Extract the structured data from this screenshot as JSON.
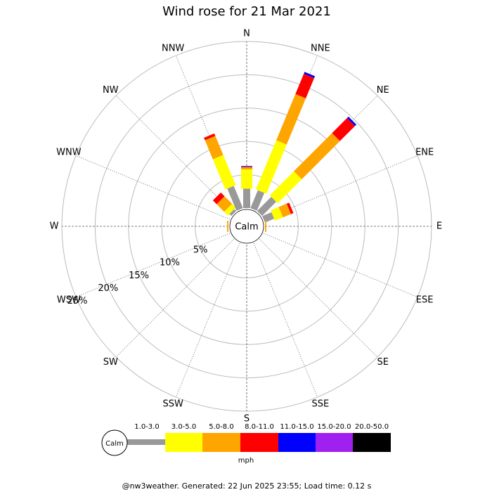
{
  "chart_data": {
    "type": "windrose",
    "title": "Wind rose for 21 Mar 2021",
    "categories": [
      "N",
      "NNE",
      "NE",
      "ENE",
      "E",
      "ESE",
      "SE",
      "SSE",
      "S",
      "SSW",
      "SW",
      "WSW",
      "W",
      "WNW",
      "NW",
      "NNW"
    ],
    "series": [
      {
        "name": "1.0-3.0",
        "color": "#999999",
        "values": [
          2.9,
          2.9,
          3.0,
          1.5,
          0,
          0,
          0,
          0,
          0,
          0,
          0,
          0,
          0,
          0,
          0.4,
          3.6
        ]
      },
      {
        "name": "3.0-5.0",
        "color": "#ffff00",
        "values": [
          2.9,
          8.0,
          5.1,
          1.3,
          0,
          0,
          0,
          0,
          0,
          0,
          0,
          0,
          0,
          0,
          0.8,
          4.9
        ]
      },
      {
        "name": "5.0-8.0",
        "color": "#ffa500",
        "values": [
          0.3,
          7.5,
          8.1,
          1.3,
          0.2,
          0,
          0,
          0,
          0,
          0,
          0,
          0,
          0.2,
          0,
          1.6,
          3.1
        ]
      },
      {
        "name": "8.0-11.0",
        "color": "#ff0000",
        "values": [
          0.1,
          3.3,
          3.2,
          0.4,
          0,
          0,
          0,
          0,
          0,
          0,
          0,
          0,
          0,
          0,
          0.8,
          0.4
        ]
      },
      {
        "name": "11.0-15.0",
        "color": "#0000ff",
        "values": [
          0.1,
          0.3,
          0.3,
          0,
          0,
          0,
          0,
          0,
          0,
          0,
          0,
          0,
          0,
          0,
          0,
          0
        ]
      },
      {
        "name": "15.0-20.0",
        "color": "#a020f0",
        "values": [
          0,
          0,
          0,
          0,
          0,
          0,
          0,
          0,
          0,
          0,
          0,
          0,
          0,
          0,
          0,
          0
        ]
      },
      {
        "name": "20.0-50.0",
        "color": "#000000",
        "values": [
          0,
          0,
          0,
          0,
          0,
          0,
          0,
          0,
          0,
          0,
          0,
          0,
          0,
          0,
          0,
          0
        ]
      }
    ],
    "rlim": [
      0,
      25
    ],
    "rticks": [
      {
        "value": 5,
        "label": "5%"
      },
      {
        "value": 10,
        "label": "10%"
      },
      {
        "value": 15,
        "label": "15%"
      },
      {
        "value": 20,
        "label": "20%"
      },
      {
        "value": 25,
        "label": "25%"
      }
    ],
    "calm_label": "Calm",
    "unit": "mph",
    "footer": "@nw3weather. Generated: 22 Jun 2025 23:55; Load time: 0.12 s"
  }
}
